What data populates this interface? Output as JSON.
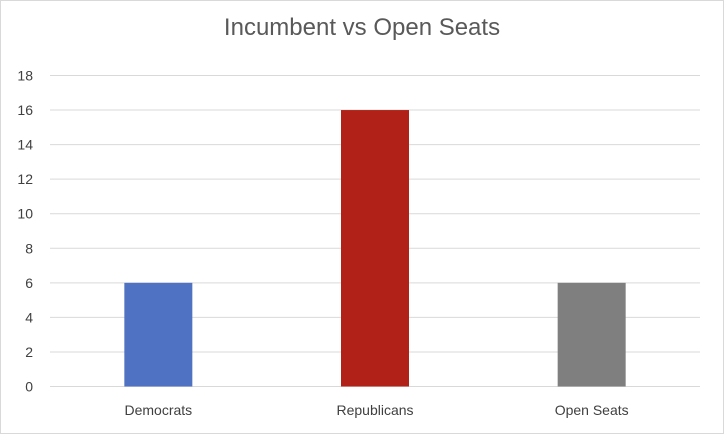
{
  "chart_data": {
    "type": "bar",
    "title": "Incumbent vs Open Seats",
    "categories": [
      "Democrats",
      "Republicans",
      "Open Seats"
    ],
    "values": [
      6,
      16,
      6
    ],
    "colors": [
      "#4f72c2",
      "#b12117",
      "#7f7f7f"
    ],
    "ylim": [
      0,
      18
    ],
    "yticks": [
      0,
      2,
      4,
      6,
      8,
      10,
      12,
      14,
      16,
      18
    ],
    "grid": true,
    "legend": "none"
  }
}
